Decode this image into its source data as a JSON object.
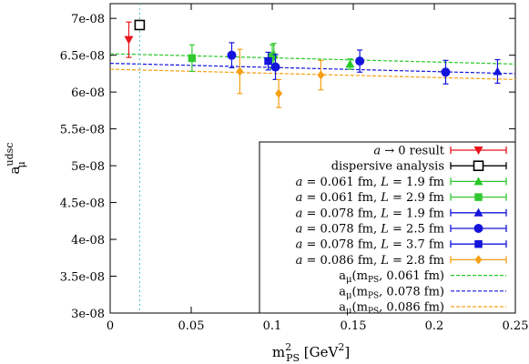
{
  "chart_data": {
    "type": "scatter",
    "title": "",
    "xlabel": {
      "base": "m",
      "sup": "2",
      "sub": "PS",
      "unit": "[GeV",
      "unit_sup": "2",
      "unit_close": "]"
    },
    "ylabel": {
      "base": "a",
      "sup": "udsc",
      "sub": "μ"
    },
    "xlim": [
      0,
      0.25
    ],
    "ylim": [
      3e-08,
      7.2e-08
    ],
    "xticks": [
      0,
      0.05,
      0.1,
      0.15,
      0.2,
      0.25
    ],
    "xtick_labels": [
      "0",
      "0.05",
      "0.1",
      "0.15",
      "0.2",
      "0.25"
    ],
    "yticks": [
      3e-08,
      3.5e-08,
      4e-08,
      4.5e-08,
      5e-08,
      5.5e-08,
      6e-08,
      6.5e-08,
      7e-08
    ],
    "ytick_labels": [
      "3e-08",
      "3.5e-08",
      "4e-08",
      "4.5e-08",
      "5e-08",
      "5.5e-08",
      "6e-08",
      "6.5e-08",
      "7e-08"
    ],
    "vertical_line": {
      "x": 0.0182,
      "color": "#5fc8c8"
    },
    "legend_position": "bottom-right",
    "series": [
      {
        "name": "a → 0 result",
        "legend": {
          "pre": "a",
          "post": " → 0 result",
          "italic_pre": true
        },
        "marker": "triangle-down",
        "color": "#e8141e",
        "points": [
          {
            "x": 0.0115,
            "y": 6.71e-08,
            "err": 2.4e-09
          }
        ]
      },
      {
        "name": "dispersive analysis",
        "legend": {
          "pre": "dispersive analysis"
        },
        "marker": "square-open",
        "color": "#000000",
        "points": [
          {
            "x": 0.0182,
            "y": 6.91e-08,
            "err": 4e-10
          }
        ]
      },
      {
        "name": "a = 0.061 fm, L = 1.9 fm",
        "legend": {
          "pre": "a = 0.061 fm, L = 1.9 fm",
          "formula": true
        },
        "marker": "triangle-up",
        "color": "#28c828",
        "points": [
          {
            "x": 0.101,
            "y": 6.51e-08,
            "err": 1.5e-09
          },
          {
            "x": 0.148,
            "y": 6.38e-08,
            "err": 7e-10
          }
        ]
      },
      {
        "name": "a = 0.061 fm, L = 2.9 fm",
        "legend": {
          "pre": "a = 0.061 fm, L = 2.9 fm",
          "formula": true
        },
        "marker": "square",
        "color": "#32c832",
        "points": [
          {
            "x": 0.0505,
            "y": 6.46e-08,
            "err": 1.8e-09
          },
          {
            "x": 0.1,
            "y": 6.48e-08,
            "err": 1.6e-09
          }
        ]
      },
      {
        "name": "a = 0.078 fm, L = 1.9 fm",
        "legend": {
          "pre": "a = 0.078 fm, L = 1.9 fm",
          "formula": true
        },
        "marker": "triangle-up",
        "color": "#1414dc",
        "points": [
          {
            "x": 0.239,
            "y": 6.28e-08,
            "err": 1.6e-09
          }
        ]
      },
      {
        "name": "a = 0.078 fm, L = 2.5 fm",
        "legend": {
          "pre": "a = 0.078 fm, L = 2.5 fm",
          "formula": true
        },
        "marker": "circle",
        "color": "#1414dc",
        "points": [
          {
            "x": 0.075,
            "y": 6.5e-08,
            "err": 1.7e-09
          },
          {
            "x": 0.102,
            "y": 6.34e-08,
            "err": 1.7e-09
          },
          {
            "x": 0.154,
            "y": 6.42e-08,
            "err": 1.5e-09
          },
          {
            "x": 0.207,
            "y": 6.27e-08,
            "err": 1.6e-09
          }
        ]
      },
      {
        "name": "a = 0.078 fm, L = 3.7 fm",
        "legend": {
          "pre": "a = 0.078 fm, L = 3.7 fm",
          "formula": true
        },
        "marker": "square",
        "color": "#1414dc",
        "points": [
          {
            "x": 0.0975,
            "y": 6.42e-08,
            "err": 1.2e-09
          }
        ]
      },
      {
        "name": "a = 0.086 fm, L = 2.8 fm",
        "legend": {
          "pre": "a = 0.086 fm, L = 2.8 fm",
          "formula": true
        },
        "marker": "diamond",
        "color": "#f5a014",
        "points": [
          {
            "x": 0.08,
            "y": 6.28e-08,
            "err": 3e-09
          },
          {
            "x": 0.104,
            "y": 5.98e-08,
            "err": 1.9e-09
          },
          {
            "x": 0.13,
            "y": 6.23e-08,
            "err": 2e-09
          }
        ]
      }
    ],
    "fits": [
      {
        "name": "aμ(mPS, 0.061 fm)",
        "legend": {
          "pre": "a",
          "sub": "μ",
          "args": "(m",
          "args_sub": "PS",
          "tail": ", 0.061 fm)"
        },
        "color": "#28c828",
        "y0": 6.52e-08,
        "slope": -5.6e-09
      },
      {
        "name": "aμ(mPS, 0.078 fm)",
        "legend": {
          "pre": "a",
          "sub": "μ",
          "args": "(m",
          "args_sub": "PS",
          "tail": ", 0.078 fm)"
        },
        "color": "#1414dc",
        "y0": 6.39e-08,
        "slope": -5.6e-09
      },
      {
        "name": "aμ(mPS, 0.086 fm)",
        "legend": {
          "pre": "a",
          "sub": "μ",
          "args": "(m",
          "args_sub": "PS",
          "tail": ", 0.086 fm)"
        },
        "color": "#f5a014",
        "y0": 6.31e-08,
        "slope": -5.6e-09
      }
    ]
  }
}
